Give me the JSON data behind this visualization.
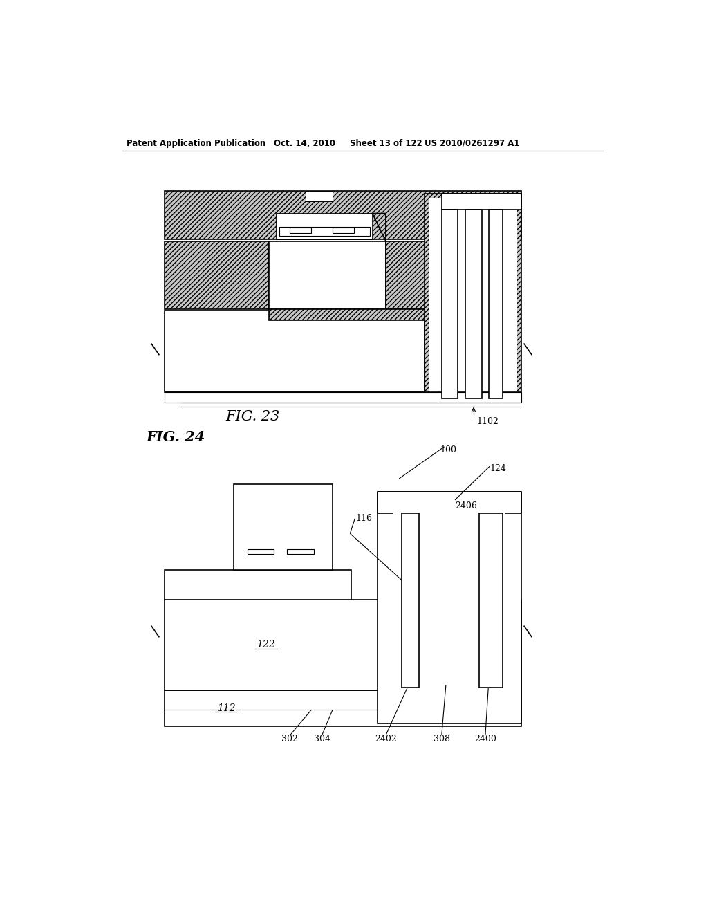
{
  "bg_color": "#ffffff",
  "header_text": "Patent Application Publication",
  "header_date": "Oct. 14, 2010",
  "header_sheet": "Sheet 13 of 122",
  "header_patent": "US 2010/0261297 A1",
  "fig23_label": "FIG. 23",
  "fig24_label": "FIG. 24",
  "hatch_gray": "#aaaaaa",
  "line_color": "#000000",
  "light_gray": "#cccccc"
}
